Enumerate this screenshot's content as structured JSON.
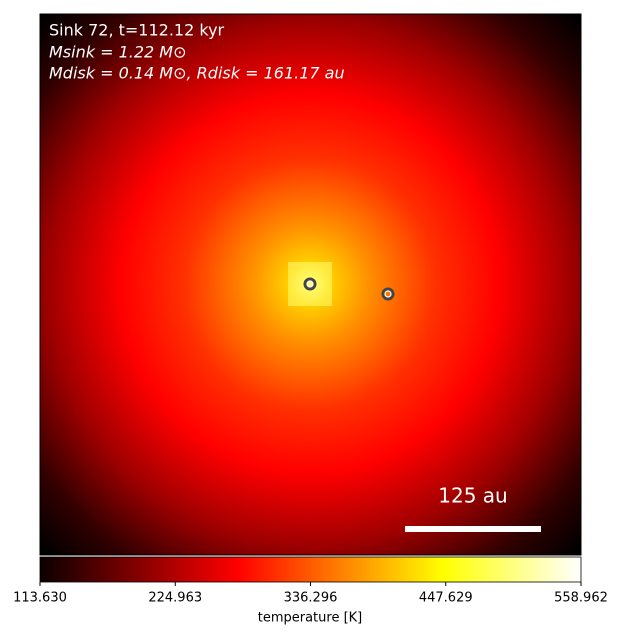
{
  "chart_data": {
    "type": "heatmap",
    "annotations": [
      "Sink 72, t=112.12 kyr",
      "Msink = 1.22 M⊙",
      "Mdisk = 0.14 M⊙, Rdisk = 161.17 au"
    ],
    "scale_bar_label": "125 au",
    "colorbar": {
      "label": "temperature [K]",
      "lim": [
        113.63,
        558.962
      ],
      "ticks": [
        {
          "value": 113.63,
          "label": "113.630"
        },
        224.963,
        336.296,
        447.629,
        558.962
      ]
    }
  }
}
